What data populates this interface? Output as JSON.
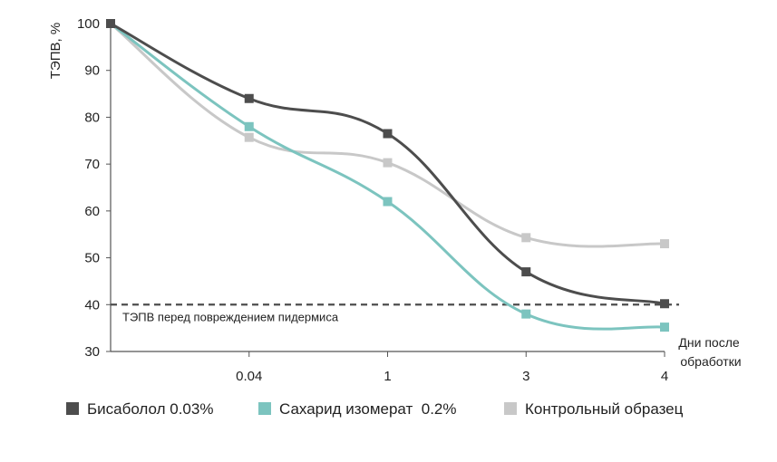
{
  "chart_data": {
    "type": "line",
    "ylabel": "ТЭПВ, %",
    "xlabel": "Дни после обработки",
    "xlabel_lines": [
      "Дни после",
      "обработки"
    ],
    "ylim": [
      30,
      100
    ],
    "yticks": [
      30,
      40,
      50,
      60,
      70,
      80,
      90,
      100
    ],
    "categories": [
      "0",
      "0.04",
      "1",
      "3",
      "4"
    ],
    "tick_labels": [
      "",
      "0.04",
      "1",
      "3",
      "4"
    ],
    "grid": false,
    "legend_position": "bottom",
    "series": [
      {
        "name": "Бисаболол 0.03%",
        "color": "#4d4d4d",
        "values": [
          100,
          84,
          76.5,
          47,
          40.2
        ]
      },
      {
        "name": "Сахарид изомерат  0.2%",
        "color": "#7cc4bf",
        "values": [
          100,
          78,
          62,
          38,
          35.2
        ]
      },
      {
        "name": "Контрольный образец",
        "color": "#c8c8c8",
        "values": [
          100,
          75.7,
          70.3,
          54.3,
          53
        ]
      }
    ],
    "reference_line": {
      "value": 40,
      "label": "ТЭПВ перед повреждением пидермиса",
      "color": "#4d4d4d"
    }
  }
}
